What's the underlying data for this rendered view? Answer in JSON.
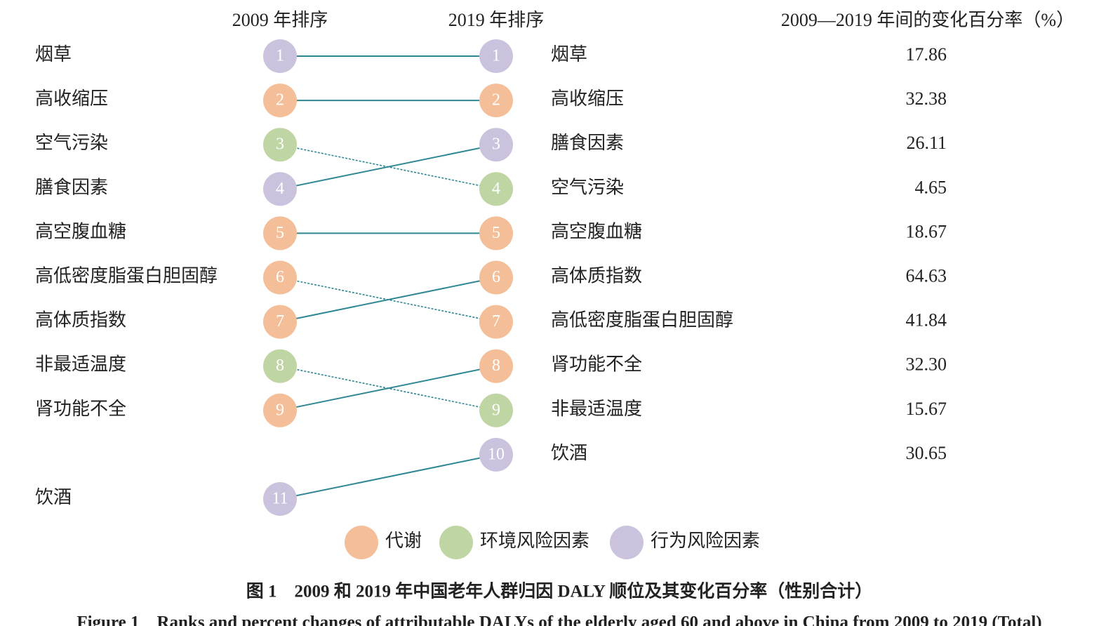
{
  "headers": {
    "rank2009": "2009 年排序",
    "rank2019": "2019 年排序",
    "change": "2009—2019 年间的变化百分率（%）"
  },
  "left": [
    {
      "label": "烟草",
      "rank": 1,
      "color": "#cbc3de"
    },
    {
      "label": "高收缩压",
      "rank": 2,
      "color": "#f4bf98"
    },
    {
      "label": "空气污染",
      "rank": 3,
      "color": "#bfd6a4"
    },
    {
      "label": "膳食因素",
      "rank": 4,
      "color": "#cbc3de"
    },
    {
      "label": "高空腹血糖",
      "rank": 5,
      "color": "#f4bf98"
    },
    {
      "label": "高低密度脂蛋白胆固醇",
      "rank": 6,
      "color": "#f4bf98"
    },
    {
      "label": "高体质指数",
      "rank": 7,
      "color": "#f4bf98"
    },
    {
      "label": "非最适温度",
      "rank": 8,
      "color": "#bfd6a4"
    },
    {
      "label": "肾功能不全",
      "rank": 9,
      "color": "#f4bf98"
    },
    {
      "label": "饮酒",
      "rank": 11,
      "color": "#cbc3de"
    }
  ],
  "right": [
    {
      "label": "烟草",
      "rank": 1,
      "color": "#cbc3de",
      "change": "17.86"
    },
    {
      "label": "高收缩压",
      "rank": 2,
      "color": "#f4bf98",
      "change": "32.38"
    },
    {
      "label": "膳食因素",
      "rank": 3,
      "color": "#cbc3de",
      "change": "26.11"
    },
    {
      "label": "空气污染",
      "rank": 4,
      "color": "#bfd6a4",
      "change": "4.65"
    },
    {
      "label": "高空腹血糖",
      "rank": 5,
      "color": "#f4bf98",
      "change": "18.67"
    },
    {
      "label": "高体质指数",
      "rank": 6,
      "color": "#f4bf98",
      "change": "64.63"
    },
    {
      "label": "高低密度脂蛋白胆固醇",
      "rank": 7,
      "color": "#f4bf98",
      "change": "41.84"
    },
    {
      "label": "肾功能不全",
      "rank": 8,
      "color": "#f4bf98",
      "change": "32.30"
    },
    {
      "label": "非最适温度",
      "rank": 9,
      "color": "#bfd6a4",
      "change": "15.67"
    },
    {
      "label": "饮酒",
      "rank": 10,
      "color": "#cbc3de",
      "change": "30.65"
    }
  ],
  "legend": [
    {
      "label": "代谢",
      "color": "#f4bf98"
    },
    {
      "label": "环境风险因素",
      "color": "#bfd6a4"
    },
    {
      "label": "行为风险因素",
      "color": "#cbc3de"
    }
  ],
  "caption": "图 1　2009 和 2019 年中国老年人群归因 DALY 顺位及其变化百分率（性别合计）",
  "caption_en": "Figure 1　Ranks and percent changes of attributable DALYs of the elderly aged 60 and above in China from 2009 to 2019 (Total)"
}
